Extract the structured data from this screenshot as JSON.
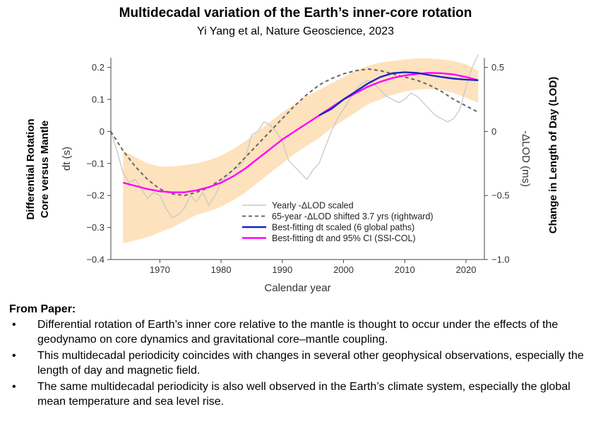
{
  "header": {
    "title": "Multidecadal variation of the Earth’s inner-core rotation",
    "subtitle": "Yi Yang et al, Nature Geoscience, 2023"
  },
  "chart_data": {
    "type": "line",
    "xlabel": "Calendar year",
    "xlim": [
      1962,
      2023
    ],
    "xticks": [
      1970,
      1980,
      1990,
      2000,
      2010,
      2020
    ],
    "left_axis": {
      "label": "dt (s)",
      "ylim": [
        -0.4,
        0.23
      ],
      "ticks": [
        0.2,
        0.1,
        0,
        -0.1,
        -0.2,
        -0.3,
        -0.4
      ],
      "tick_labels": [
        "0.2",
        "0.1",
        "0",
        "−0.1",
        "−0.2",
        "−0.3",
        "−0.4"
      ],
      "side_label": [
        "Differential Rotation",
        "Core versus Mantle"
      ]
    },
    "right_axis": {
      "label": "-ΔLOD (ms)",
      "ticks": [
        0.5,
        0,
        -0.5,
        -1.0
      ],
      "tick_labels": [
        "0.5",
        "0",
        "−0.5",
        "−1.0"
      ],
      "note": "0.5 ms aligned to 0.2 s; 0 ms aligned to 0.0 s",
      "side_label": "Change in Length of Day (LOD)"
    },
    "legend": {
      "placement": "bottom-right",
      "entries": [
        {
          "label": "Yearly -ΔLOD scaled",
          "style": "gray-thin"
        },
        {
          "label": "65-year -ΔLOD shifted 3.7 yrs (rightward)",
          "style": "gray-dashed"
        },
        {
          "label": "Best-fitting dt scaled (6 global paths)",
          "style": "blue"
        },
        {
          "label": "Best-fitting dt and 95% CI (SSI-COL)",
          "style": "magenta"
        }
      ]
    },
    "series": [
      {
        "name": "Yearly -ΔLOD scaled",
        "color": "#c8c8c8",
        "x": [
          1962,
          1963,
          1964,
          1965,
          1966,
          1967,
          1968,
          1969,
          1970,
          1971,
          1972,
          1973,
          1974,
          1975,
          1976,
          1977,
          1978,
          1979,
          1980,
          1981,
          1982,
          1983,
          1984,
          1985,
          1986,
          1987,
          1988,
          1989,
          1990,
          1991,
          1992,
          1993,
          1994,
          1995,
          1996,
          1997,
          1998,
          1999,
          2000,
          2001,
          2002,
          2003,
          2004,
          2005,
          2006,
          2007,
          2008,
          2009,
          2010,
          2011,
          2012,
          2013,
          2014,
          2015,
          2016,
          2017,
          2018,
          2019,
          2020,
          2021,
          2022
        ],
        "values": [
          0.0,
          -0.06,
          -0.13,
          -0.16,
          -0.15,
          -0.18,
          -0.21,
          -0.19,
          -0.2,
          -0.24,
          -0.27,
          -0.26,
          -0.24,
          -0.2,
          -0.22,
          -0.19,
          -0.23,
          -0.2,
          -0.16,
          -0.14,
          -0.12,
          -0.11,
          -0.08,
          -0.01,
          0.0,
          0.03,
          0.02,
          0.0,
          -0.03,
          -0.09,
          -0.11,
          -0.13,
          -0.15,
          -0.12,
          -0.1,
          -0.05,
          0.0,
          0.04,
          0.07,
          0.1,
          0.13,
          0.15,
          0.16,
          0.15,
          0.13,
          0.11,
          0.1,
          0.09,
          0.1,
          0.12,
          0.11,
          0.09,
          0.07,
          0.05,
          0.04,
          0.03,
          0.04,
          0.07,
          0.14,
          0.2,
          0.24
        ]
      },
      {
        "name": "65-year -ΔLOD shifted 3.7 yrs (rightward)",
        "color": "#666666",
        "x": [
          1962,
          1964,
          1966,
          1968,
          1970,
          1972,
          1974,
          1976,
          1978,
          1980,
          1982,
          1984,
          1986,
          1988,
          1990,
          1992,
          1994,
          1996,
          1998,
          2000,
          2002,
          2004,
          2006,
          2008,
          2010,
          2012,
          2014,
          2016,
          2018,
          2020,
          2022
        ],
        "values": [
          0.0,
          -0.06,
          -0.11,
          -0.15,
          -0.18,
          -0.195,
          -0.2,
          -0.19,
          -0.175,
          -0.15,
          -0.12,
          -0.08,
          -0.04,
          0.0,
          0.04,
          0.08,
          0.115,
          0.145,
          0.165,
          0.18,
          0.19,
          0.195,
          0.19,
          0.18,
          0.17,
          0.16,
          0.145,
          0.125,
          0.1,
          0.08,
          0.06
        ]
      },
      {
        "name": "Best-fitting dt scaled (6 global paths)",
        "color": "#1a22c8",
        "x": [
          1996,
          1998,
          2000,
          2002,
          2004,
          2006,
          2008,
          2010,
          2012,
          2014,
          2016,
          2018,
          2020,
          2022
        ],
        "values": [
          0.05,
          0.07,
          0.1,
          0.125,
          0.15,
          0.17,
          0.182,
          0.185,
          0.183,
          0.176,
          0.17,
          0.165,
          0.162,
          0.16
        ]
      },
      {
        "name": "Best-fitting dt and 95% CI (SSI-COL)",
        "color": "#ff00ff",
        "x": [
          1964,
          1966,
          1968,
          1970,
          1972,
          1974,
          1976,
          1978,
          1980,
          1982,
          1984,
          1986,
          1988,
          1990,
          1992,
          1994,
          1996,
          1998,
          2000,
          2002,
          2004,
          2006,
          2008,
          2010,
          2012,
          2014,
          2016,
          2018,
          2020,
          2022
        ],
        "values": [
          -0.16,
          -0.17,
          -0.18,
          -0.187,
          -0.19,
          -0.19,
          -0.184,
          -0.174,
          -0.16,
          -0.14,
          -0.115,
          -0.085,
          -0.055,
          -0.025,
          0.0,
          0.025,
          0.05,
          0.075,
          0.1,
          0.12,
          0.14,
          0.155,
          0.167,
          0.175,
          0.18,
          0.183,
          0.182,
          0.178,
          0.17,
          0.16
        ]
      }
    ],
    "ci_band": {
      "name": "95% CI (SSI-COL)",
      "color": "#fde2bd",
      "x": [
        1964,
        1966,
        1968,
        1970,
        1972,
        1974,
        1976,
        1978,
        1980,
        1982,
        1984,
        1986,
        1988,
        1990,
        1992,
        1994,
        1996,
        1998,
        2000,
        2002,
        2004,
        2006,
        2008,
        2010,
        2012,
        2014,
        2016,
        2018,
        2020,
        2022
      ],
      "upper": [
        -0.06,
        -0.08,
        -0.1,
        -0.11,
        -0.11,
        -0.105,
        -0.1,
        -0.09,
        -0.075,
        -0.055,
        -0.03,
        0.0,
        0.03,
        0.06,
        0.085,
        0.11,
        0.13,
        0.15,
        0.17,
        0.19,
        0.205,
        0.215,
        0.22,
        0.225,
        0.228,
        0.228,
        0.225,
        0.22,
        0.21,
        0.19
      ],
      "lower": [
        -0.35,
        -0.34,
        -0.33,
        -0.315,
        -0.3,
        -0.28,
        -0.26,
        -0.25,
        -0.235,
        -0.215,
        -0.19,
        -0.16,
        -0.13,
        -0.1,
        -0.07,
        -0.045,
        -0.02,
        0.01,
        0.035,
        0.06,
        0.085,
        0.1,
        0.115,
        0.125,
        0.13,
        0.133,
        0.13,
        0.12,
        0.105,
        0.09
      ]
    }
  },
  "notes": {
    "heading": "From Paper:",
    "bullet_glyph": "•",
    "items": [
      "Differential rotation of Earth’s inner core relative to the mantle is thought to occur under the effects of the geodynamo on core dynamics and gravitational core–mantle coupling.",
      "This multidecadal periodicity coincides with changes in several other geophysical observations, especially the length of day and magnetic field.",
      "The same multidecadal periodicity is also well observed in the Earth’s climate system, especially the global mean temperature and sea level rise."
    ]
  }
}
